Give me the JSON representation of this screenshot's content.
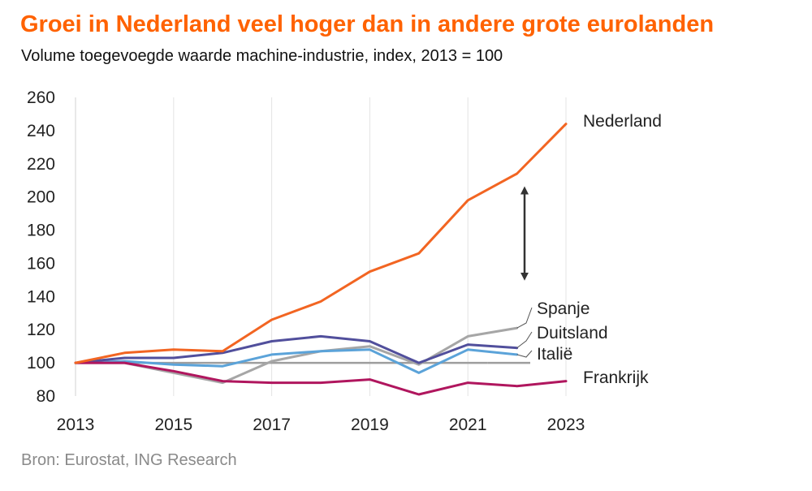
{
  "header": {
    "title": "Groei in Nederland veel hoger dan in andere grote eurolanden",
    "subtitle": "Volume  toegevoegde waarde machine-industrie, index, 2013 = 100"
  },
  "footer": {
    "source": "Bron: Eurostat, ING Research"
  },
  "chart_data": {
    "type": "line",
    "title": "Groei in Nederland veel hoger dan in andere grote eurolanden",
    "subtitle": "Volume  toegevoegde waarde machine-industrie, index, 2013 = 100",
    "xlabel": "",
    "ylabel": "",
    "x": [
      2013,
      2014,
      2015,
      2016,
      2017,
      2018,
      2019,
      2020,
      2021,
      2022,
      2023
    ],
    "xticks": [
      "2013",
      "2015",
      "2017",
      "2019",
      "2021",
      "2023"
    ],
    "xlim": [
      2013,
      2023
    ],
    "ylim": [
      80,
      260
    ],
    "yticks": [
      80,
      100,
      120,
      140,
      160,
      180,
      200,
      220,
      240,
      260
    ],
    "reference_line": 100,
    "grid": "vertical",
    "series": [
      {
        "name": "Nederland",
        "color": "#f26522",
        "values": [
          100,
          106,
          108,
          107,
          126,
          137,
          155,
          166,
          198,
          214,
          244
        ]
      },
      {
        "name": "Spanje",
        "color": "#a6a6a6",
        "values": [
          100,
          100,
          94,
          88,
          101,
          107,
          110,
          99,
          116,
          121,
          null
        ]
      },
      {
        "name": "Duitsland",
        "color": "#514f9c",
        "values": [
          100,
          103,
          103,
          106,
          113,
          116,
          113,
          100,
          111,
          109,
          null
        ]
      },
      {
        "name": "Italië",
        "color": "#5ba3d9",
        "values": [
          100,
          101,
          99,
          98,
          105,
          107,
          108,
          94,
          108,
          105,
          null
        ]
      },
      {
        "name": "Frankrijk",
        "color": "#b0165e",
        "values": [
          100,
          100,
          95,
          89,
          88,
          88,
          90,
          81,
          88,
          86,
          89
        ]
      }
    ],
    "annotations": [
      {
        "type": "double-arrow",
        "x": 2021.2,
        "from": 152,
        "to": 204
      }
    ]
  }
}
